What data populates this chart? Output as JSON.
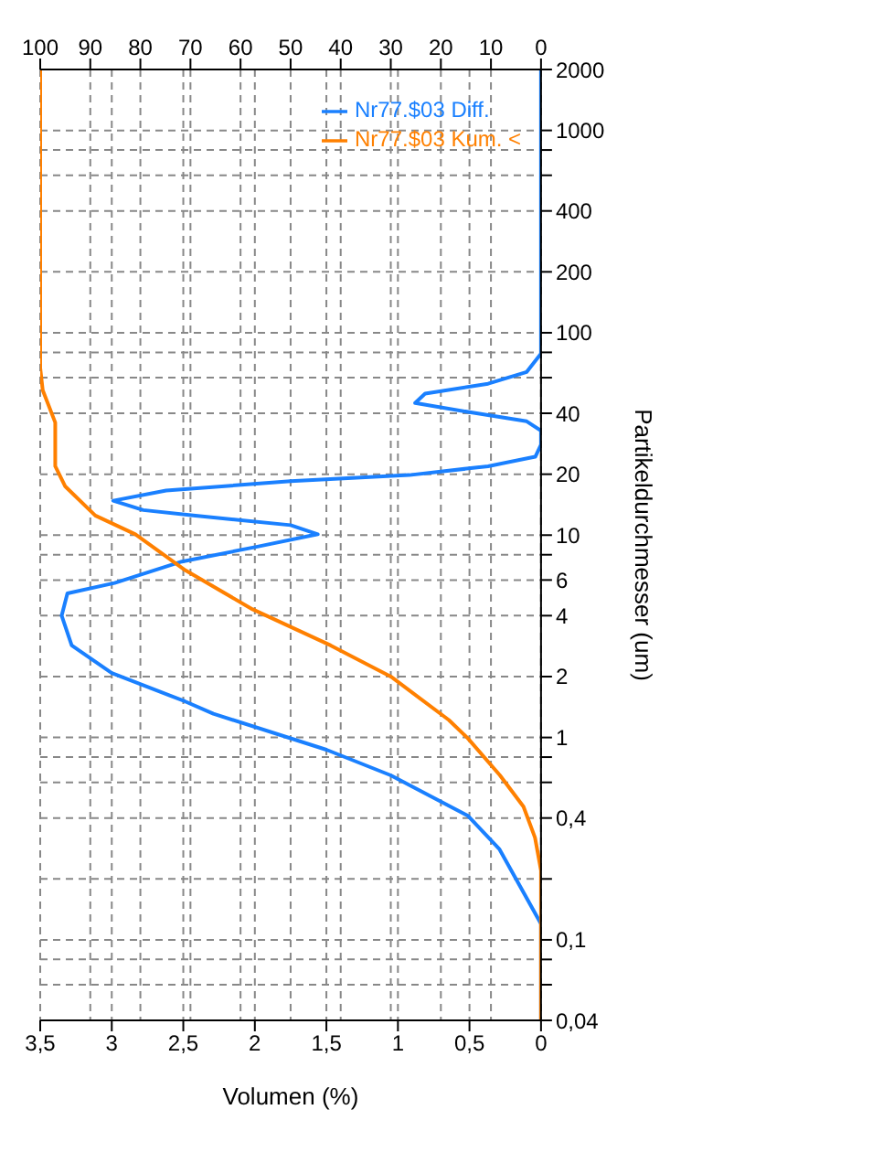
{
  "chart_data": {
    "type": "line",
    "xlabel": "Volumen (%)",
    "ylabel": "Partikeldurchmesser (um)",
    "log": "y",
    "ylim": [
      0.04,
      2000
    ],
    "yticks": [
      {
        "value": 0.04,
        "label": "0,04"
      },
      {
        "value": 0.06,
        "label": null
      },
      {
        "value": 0.08,
        "label": null
      },
      {
        "value": 0.1,
        "label": "0,1"
      },
      {
        "value": 0.2,
        "label": null
      },
      {
        "value": 0.4,
        "label": "0,4"
      },
      {
        "value": 0.6,
        "label": null
      },
      {
        "value": 0.8,
        "label": null
      },
      1,
      2,
      4,
      6,
      {
        "value": 8,
        "label": null
      },
      10,
      20,
      40,
      {
        "value": 60,
        "label": null
      },
      {
        "value": 80,
        "label": null
      },
      100,
      200,
      400,
      {
        "value": 600,
        "label": null
      },
      {
        "value": 800,
        "label": null
      },
      1000,
      2000
    ],
    "xlim": [
      3.5,
      0
    ],
    "xticks": [
      0,
      {
        "value": 0.5,
        "label": "0,5"
      },
      1,
      {
        "value": 1.5,
        "label": "1,5"
      },
      2,
      {
        "value": 2.5,
        "label": "2,5"
      },
      3,
      {
        "value": 3.5,
        "label": "3,5"
      }
    ],
    "x2lim": [
      100,
      0
    ],
    "x2ticks": [
      0,
      10,
      20,
      30,
      40,
      50,
      60,
      70,
      80,
      90,
      100
    ],
    "grid": true,
    "legend": "top right",
    "marker": "none",
    "series": [
      {
        "name": "Nr77.$03 Diff.",
        "color": "#1a80ff",
        "x": [
          0,
          0,
          0,
          0.29,
          0.51,
          1.05,
          1.5,
          2.29,
          2.49,
          3.0,
          3.28,
          3.35,
          3.31,
          2.98,
          2.51,
          1.99,
          1.56,
          1.75,
          2.43,
          2.78,
          2.99,
          2.62,
          1.75,
          0.92,
          0.37,
          0.04,
          0,
          0,
          0.1,
          0.51,
          0.88,
          0.81,
          0.37,
          0.1,
          0,
          0
        ],
        "values": [
          0.04,
          0.1,
          0.12,
          0.28,
          0.41,
          0.65,
          0.87,
          1.31,
          1.51,
          2.08,
          2.85,
          4.0,
          5.15,
          5.8,
          7.4,
          8.75,
          10.1,
          11.2,
          12.5,
          13.3,
          14.8,
          16.6,
          18.5,
          19.8,
          21.9,
          24.4,
          28,
          32.8,
          36.5,
          40.6,
          45,
          50,
          56,
          64,
          79,
          2000
        ]
      },
      {
        "name": "Nr77.$03 Kum. <",
        "color": "#ff8000",
        "axis": "x2",
        "x": [
          0,
          0,
          1.2,
          3.5,
          8.2,
          14.6,
          18.4,
          30,
          42,
          57.6,
          71,
          81,
          89,
          95,
          97,
          97,
          99.5,
          100,
          100
        ],
        "values": [
          0.04,
          0.22,
          0.32,
          0.455,
          0.65,
          0.99,
          1.22,
          2.0,
          2.85,
          4.3,
          6.7,
          10.1,
          12.5,
          17.4,
          21.9,
          36,
          52,
          67,
          2000
        ]
      }
    ]
  }
}
